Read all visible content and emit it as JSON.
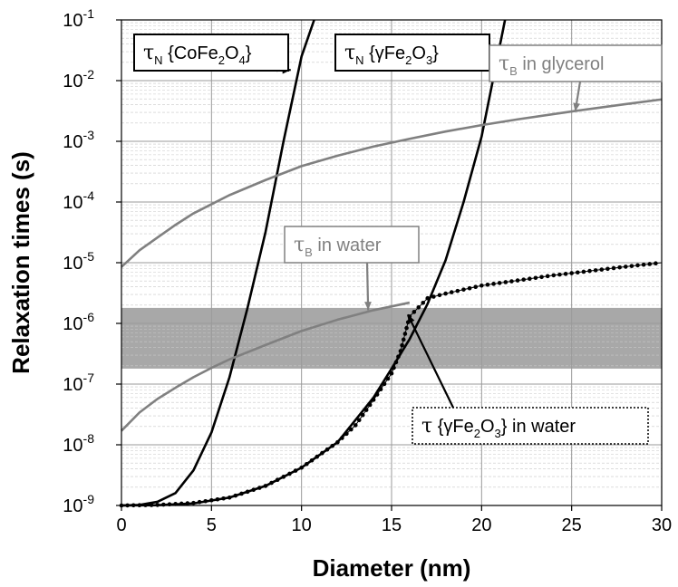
{
  "chart_data": {
    "type": "line",
    "xlabel": "Diameter (nm)",
    "ylabel": "Relaxation times (s)",
    "xlim": [
      0,
      30
    ],
    "ylim": [
      1e-09,
      0.1
    ],
    "y_scale": "log",
    "grid": true,
    "x_ticks": [
      "0",
      "5",
      "10",
      "15",
      "20",
      "25",
      "30"
    ],
    "y_ticks": [
      {
        "base": "10",
        "exp": "-9",
        "value": 1e-09
      },
      {
        "base": "10",
        "exp": "-8",
        "value": 1e-08
      },
      {
        "base": "10",
        "exp": "-7",
        "value": 1e-07
      },
      {
        "base": "10",
        "exp": "-6",
        "value": 1e-06
      },
      {
        "base": "10",
        "exp": "-5",
        "value": 1e-05
      },
      {
        "base": "10",
        "exp": "-4",
        "value": 0.0001
      },
      {
        "base": "10",
        "exp": "-3",
        "value": 0.001
      },
      {
        "base": "10",
        "exp": "-2",
        "value": 0.01
      },
      {
        "base": "10",
        "exp": "-1",
        "value": 0.1
      }
    ],
    "band": {
      "y_range": [
        1.8e-07,
        1.8e-06
      ],
      "color": "#a8a8a8"
    },
    "series": [
      {
        "key": "neel_cofe2o4",
        "style": "solid",
        "color": "#000000",
        "x": [
          0,
          1,
          2,
          3,
          4,
          5,
          6,
          7,
          8,
          9,
          10,
          10.7
        ],
        "y": [
          1e-09,
          1.02e-09,
          1.15e-09,
          1.6e-09,
          3.8e-09,
          1.6e-08,
          1.3e-07,
          1.8e-06,
          3.2e-05,
          0.001,
          0.025,
          0.1
        ]
      },
      {
        "key": "neel_gfe2o3",
        "style": "solid",
        "color": "#000000",
        "x": [
          0,
          2,
          4,
          6,
          8,
          10,
          12,
          14,
          15,
          16,
          17,
          18,
          19,
          20,
          21.3
        ],
        "y": [
          1e-09,
          1.01e-09,
          1.08e-09,
          1.35e-09,
          2.1e-09,
          4.2e-09,
          1.1e-08,
          6e-08,
          1.8e-07,
          5.5e-07,
          2.1e-06,
          1.1e-05,
          0.0001,
          0.0012,
          0.1
        ]
      },
      {
        "key": "brown_glycerol",
        "style": "solid",
        "color": "#808080",
        "x": [
          0,
          1,
          2,
          3,
          4,
          5,
          6,
          8,
          10,
          12,
          14,
          16,
          18,
          20,
          22,
          25,
          28,
          30
        ],
        "y": [
          8.5e-06,
          1.6e-05,
          2.6e-05,
          4.2e-05,
          6.5e-05,
          9.2e-05,
          0.00013,
          0.00023,
          0.00039,
          0.00058,
          0.00082,
          0.0011,
          0.00145,
          0.00185,
          0.0023,
          0.0031,
          0.0041,
          0.0049
        ]
      },
      {
        "key": "brown_water",
        "style": "solid",
        "color": "#808080",
        "x": [
          0,
          1,
          2,
          3,
          4,
          5,
          6,
          8,
          10,
          12,
          14,
          16
        ],
        "y": [
          1.7e-08,
          3.4e-08,
          5.7e-08,
          8.7e-08,
          1.3e-07,
          1.85e-07,
          2.55e-07,
          4.4e-07,
          7.5e-07,
          1.15e-06,
          1.65e-06,
          2.2e-06
        ]
      },
      {
        "key": "effective_water",
        "style": "dotted",
        "color": "#000000",
        "x": [
          0,
          2,
          4,
          6,
          8,
          10,
          12,
          13,
          14,
          15,
          15.5,
          16,
          17,
          18,
          20,
          22,
          24,
          26,
          28,
          30
        ],
        "y": [
          1e-09,
          1.02e-09,
          1.1e-09,
          1.35e-09,
          2.1e-09,
          4.2e-09,
          1.1e-08,
          2.1e-08,
          5.5e-08,
          1.5e-07,
          3.5e-07,
          1.3e-06,
          2.6e-06,
          3.1e-06,
          4.2e-06,
          5.1e-06,
          6.2e-06,
          7.3e-06,
          8.6e-06,
          1e-05
        ]
      }
    ],
    "annotations": {
      "neel_cofe2o4": {
        "symbol": "τ",
        "sub": "N",
        "text": " {CoFe",
        "sub2": "2",
        "text2": "O",
        "sub3": "4",
        "text3": "}"
      },
      "neel_gfe2o3": {
        "symbol": "τ",
        "sub": "N",
        "text": " {γFe",
        "sub2": "2",
        "text2": "O",
        "sub3": "3",
        "text3": "}"
      },
      "brown_glycerol": {
        "symbol": "τ",
        "sub": "B",
        "text": " in glycerol"
      },
      "brown_water": {
        "symbol": "τ",
        "sub": "B",
        "text": " in water"
      },
      "effective_water": {
        "symbol": "τ",
        "text": " {γFe",
        "sub2": "2",
        "text2": "O",
        "sub3": "3",
        "text3": "} in water"
      }
    }
  }
}
